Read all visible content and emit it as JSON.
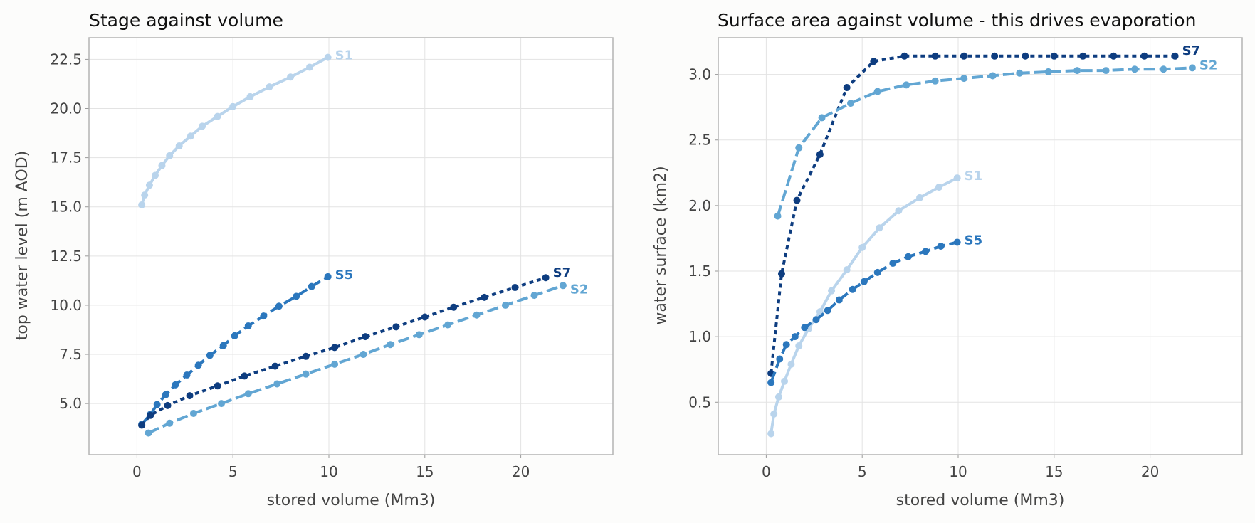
{
  "chart_data": [
    {
      "type": "line",
      "title": "Stage against volume",
      "xlabel": "stored volume (Mm3)",
      "ylabel": "top water level (m AOD)",
      "xlim": [
        -2.5,
        24.8
      ],
      "ylim": [
        2.4,
        23.6
      ],
      "xticks": [
        0,
        5,
        10,
        15,
        20
      ],
      "yticks": [
        5.0,
        7.5,
        10.0,
        12.5,
        15.0,
        17.5,
        20.0,
        22.5
      ],
      "grid": true,
      "legend": "labels at line ends",
      "series": [
        {
          "name": "S1",
          "color": "#b9d4ec",
          "dash": "solid",
          "x": [
            0.25,
            0.4,
            0.65,
            0.95,
            1.3,
            1.7,
            2.2,
            2.8,
            3.4,
            4.2,
            5.0,
            5.9,
            6.9,
            8.0,
            9.0,
            9.95
          ],
          "y": [
            15.1,
            15.6,
            16.1,
            16.6,
            17.1,
            17.6,
            18.1,
            18.6,
            19.1,
            19.6,
            20.1,
            20.6,
            21.1,
            21.6,
            22.1,
            22.6
          ]
        },
        {
          "name": "S5",
          "color": "#2b77bd",
          "dash": "long",
          "x": [
            0.25,
            0.7,
            1.05,
            1.5,
            2.0,
            2.6,
            3.2,
            3.8,
            4.5,
            5.1,
            5.8,
            6.6,
            7.4,
            8.3,
            9.1,
            9.95
          ],
          "y": [
            3.95,
            4.45,
            4.95,
            5.45,
            5.95,
            6.45,
            6.95,
            7.45,
            7.95,
            8.45,
            8.95,
            9.45,
            9.95,
            10.45,
            10.95,
            11.45
          ]
        },
        {
          "name": "S7",
          "color": "#0e3d80",
          "dash": "short",
          "x": [
            0.25,
            0.7,
            1.6,
            2.75,
            4.2,
            5.6,
            7.2,
            8.8,
            10.3,
            11.9,
            13.5,
            15.0,
            16.5,
            18.1,
            19.7,
            21.3
          ],
          "y": [
            3.9,
            4.4,
            4.9,
            5.4,
            5.9,
            6.4,
            6.9,
            7.4,
            7.85,
            8.4,
            8.9,
            9.4,
            9.9,
            10.4,
            10.9,
            11.4
          ]
        },
        {
          "name": "S2",
          "color": "#62a6d3",
          "dash": "long",
          "x": [
            0.6,
            1.7,
            2.95,
            4.4,
            5.8,
            7.3,
            8.8,
            10.3,
            11.8,
            13.2,
            14.7,
            16.2,
            17.7,
            19.2,
            20.7,
            22.2
          ],
          "y": [
            3.5,
            4.0,
            4.5,
            5.0,
            5.5,
            6.0,
            6.5,
            7.0,
            7.5,
            8.0,
            8.5,
            9.0,
            9.5,
            10.0,
            10.5,
            11.0
          ]
        }
      ]
    },
    {
      "type": "line",
      "title": "Surface area against volume - this drives evaporation",
      "xlabel": "stored volume (Mm3)",
      "ylabel": "water surface (km2)",
      "xlim": [
        -2.5,
        24.8
      ],
      "ylim": [
        0.1,
        3.28
      ],
      "xticks": [
        0,
        5,
        10,
        15,
        20
      ],
      "yticks": [
        0.5,
        1.0,
        1.5,
        2.0,
        2.5,
        3.0
      ],
      "grid": true,
      "legend": "labels at line ends",
      "series": [
        {
          "name": "S7",
          "color": "#0e3d80",
          "dash": "short",
          "x": [
            0.25,
            0.8,
            1.6,
            2.8,
            4.2,
            5.6,
            7.2,
            8.8,
            10.3,
            11.9,
            13.5,
            15.0,
            16.5,
            18.1,
            19.7,
            21.3
          ],
          "y": [
            0.72,
            1.48,
            2.04,
            2.39,
            2.9,
            3.1,
            3.14,
            3.14,
            3.14,
            3.14,
            3.14,
            3.14,
            3.14,
            3.14,
            3.14,
            3.14
          ]
        },
        {
          "name": "S2",
          "color": "#62a6d3",
          "dash": "long",
          "x": [
            0.6,
            1.7,
            2.9,
            4.4,
            5.8,
            7.3,
            8.8,
            10.3,
            11.8,
            13.2,
            14.7,
            16.2,
            17.7,
            19.2,
            20.7,
            22.2
          ],
          "y": [
            1.92,
            2.44,
            2.67,
            2.78,
            2.87,
            2.92,
            2.95,
            2.97,
            2.99,
            3.01,
            3.02,
            3.03,
            3.03,
            3.04,
            3.04,
            3.05
          ]
        },
        {
          "name": "S1",
          "color": "#b9d4ec",
          "dash": "solid",
          "x": [
            0.25,
            0.4,
            0.65,
            0.95,
            1.3,
            1.7,
            2.2,
            2.8,
            3.4,
            4.2,
            5.0,
            5.9,
            6.9,
            8.0,
            9.0,
            9.95
          ],
          "y": [
            0.26,
            0.41,
            0.54,
            0.66,
            0.79,
            0.93,
            1.06,
            1.19,
            1.35,
            1.51,
            1.68,
            1.83,
            1.96,
            2.06,
            2.14,
            2.21
          ]
        },
        {
          "name": "S5",
          "color": "#2b77bd",
          "dash": "long",
          "x": [
            0.25,
            0.7,
            1.05,
            1.5,
            2.0,
            2.6,
            3.2,
            3.8,
            4.5,
            5.1,
            5.8,
            6.6,
            7.4,
            8.3,
            9.1,
            9.95
          ],
          "y": [
            0.65,
            0.83,
            0.94,
            1.0,
            1.07,
            1.13,
            1.2,
            1.28,
            1.36,
            1.42,
            1.49,
            1.56,
            1.61,
            1.65,
            1.69,
            1.72
          ]
        }
      ]
    }
  ]
}
